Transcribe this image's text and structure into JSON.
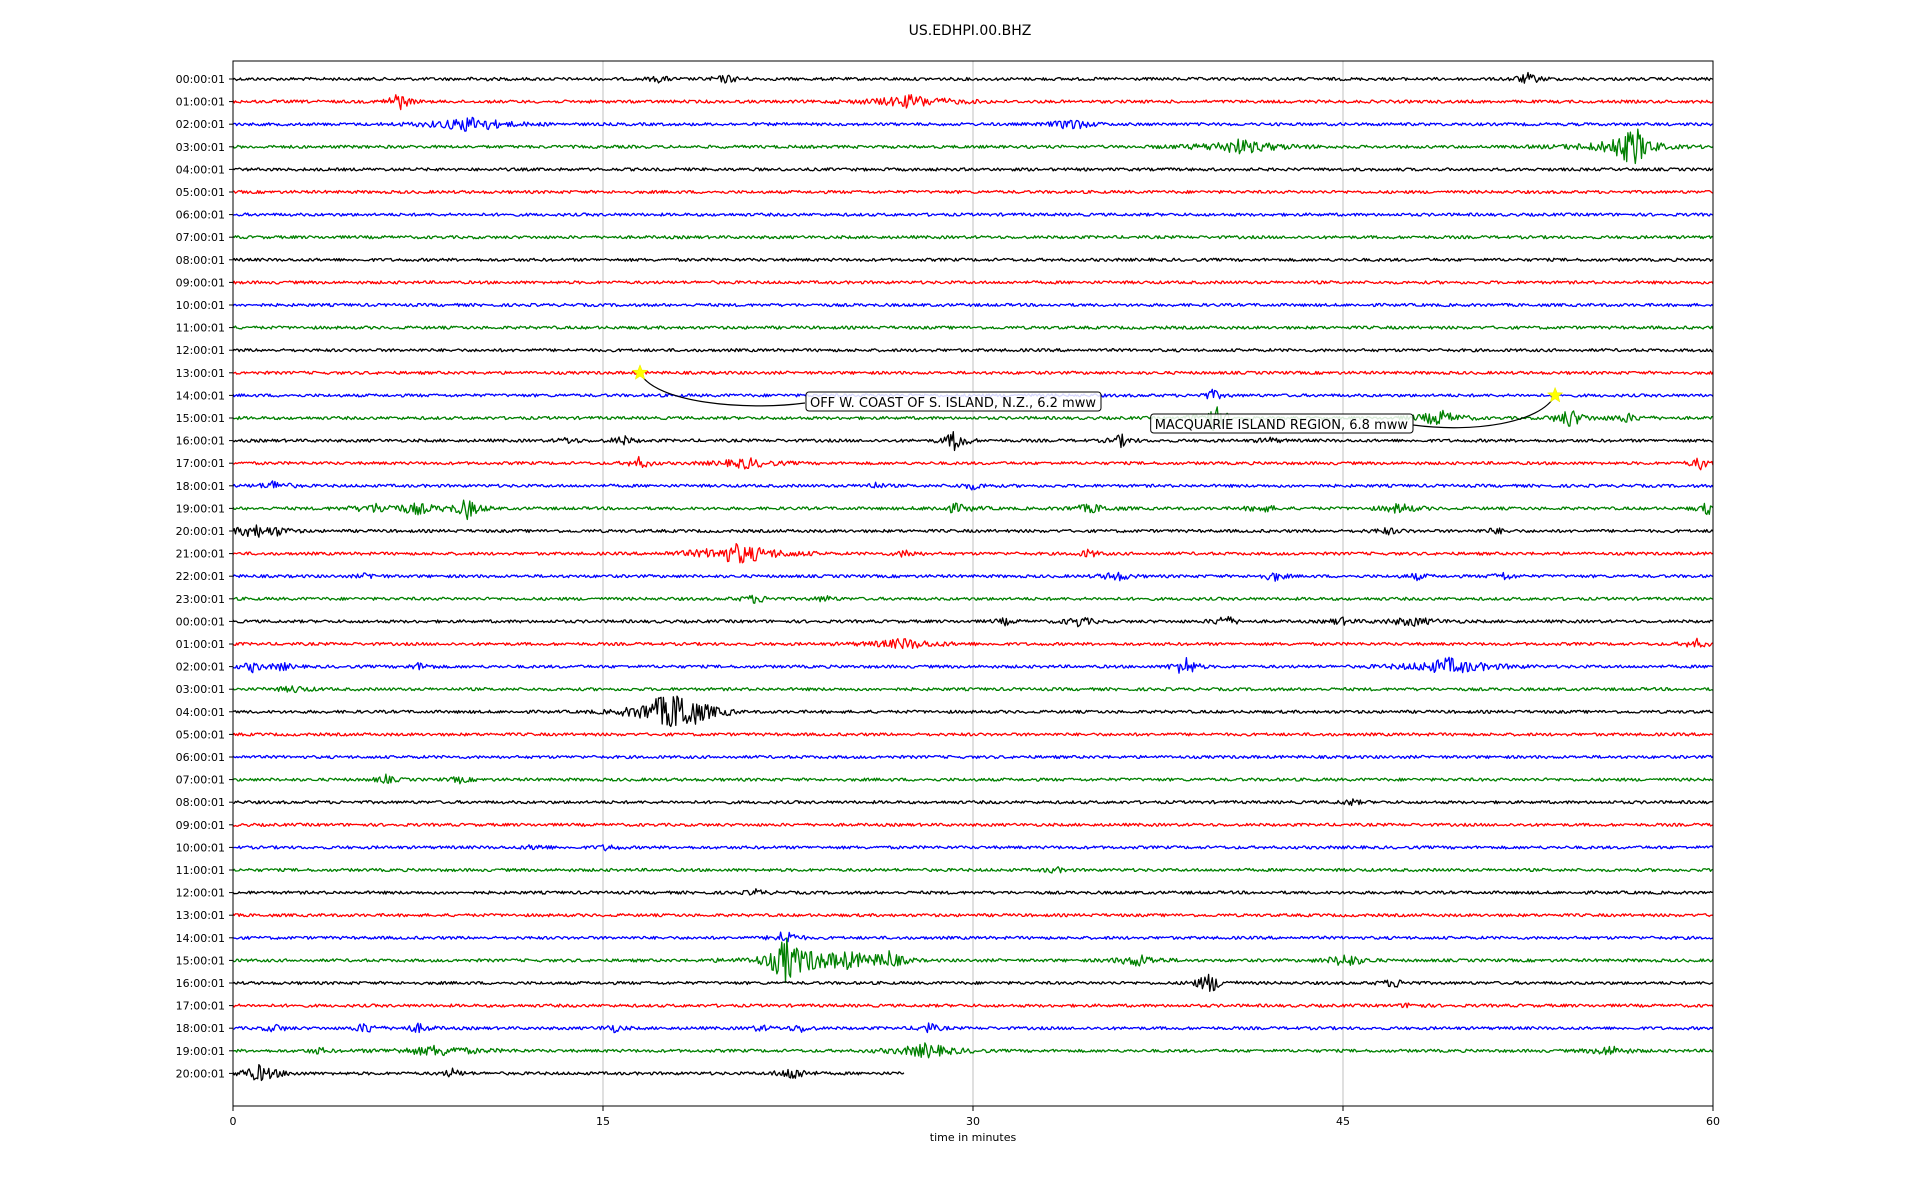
{
  "chart_data": {
    "type": "line",
    "title": "US.EDHPI.00.BHZ",
    "xlabel": "time in minutes",
    "ylabel": "",
    "xlim": [
      0,
      60
    ],
    "x_ticks": [
      0,
      15,
      30,
      45,
      60
    ],
    "grid": "vertical",
    "colors": [
      "#000000",
      "#ff0000",
      "#0000ff",
      "#008000"
    ],
    "rows": [
      {
        "label": "00:00:01",
        "end": 60,
        "bursts": [
          [
            17.3,
            3,
            0.3
          ],
          [
            20,
            3.5,
            0.4
          ],
          [
            52.5,
            5,
            0.4
          ],
          [
            10,
            2,
            0.2
          ]
        ]
      },
      {
        "label": "01:00:01",
        "end": 60,
        "bursts": [
          [
            6.7,
            10,
            0.3
          ],
          [
            27.5,
            6,
            1.2
          ]
        ]
      },
      {
        "label": "02:00:01",
        "end": 60,
        "bursts": [
          [
            9.5,
            6,
            1.2
          ],
          [
            34,
            6,
            0.5
          ],
          [
            10,
            3,
            0.4
          ]
        ]
      },
      {
        "label": "03:00:01",
        "end": 60,
        "bursts": [
          [
            40.8,
            7,
            1.2
          ],
          [
            56.8,
            20,
            0.4
          ],
          [
            56,
            6,
            1.2
          ]
        ]
      },
      {
        "label": "04:00:01",
        "end": 60,
        "bursts": []
      },
      {
        "label": "05:00:01",
        "end": 60,
        "bursts": []
      },
      {
        "label": "06:00:01",
        "end": 60,
        "bursts": []
      },
      {
        "label": "07:00:01",
        "end": 60,
        "bursts": []
      },
      {
        "label": "08:00:01",
        "end": 60,
        "bursts": []
      },
      {
        "label": "09:00:01",
        "end": 60,
        "bursts": []
      },
      {
        "label": "10:00:01",
        "end": 60,
        "bursts": []
      },
      {
        "label": "11:00:01",
        "end": 60,
        "bursts": []
      },
      {
        "label": "12:00:01",
        "end": 60,
        "bursts": []
      },
      {
        "label": "13:00:01",
        "end": 60,
        "bursts": []
      },
      {
        "label": "14:00:01",
        "end": 60,
        "bursts": [
          [
            39.7,
            5,
            0.3
          ]
        ]
      },
      {
        "label": "15:00:01",
        "end": 60,
        "bursts": [
          [
            39.7,
            16,
            0.4
          ],
          [
            48.9,
            8,
            0.6
          ],
          [
            54.2,
            10,
            0.4
          ],
          [
            56.5,
            4,
            0.5
          ]
        ]
      },
      {
        "label": "16:00:01",
        "end": 60,
        "bursts": [
          [
            15.8,
            5,
            0.3
          ],
          [
            29.3,
            12,
            0.3
          ],
          [
            36,
            6,
            0.3
          ],
          [
            13.6,
            3,
            0.3
          ],
          [
            42,
            3,
            0.3
          ]
        ]
      },
      {
        "label": "17:00:01",
        "end": 60,
        "bursts": [
          [
            16.5,
            6,
            0.3
          ],
          [
            20.8,
            5,
            0.8
          ],
          [
            59.5,
            6,
            0.3
          ]
        ]
      },
      {
        "label": "18:00:01",
        "end": 60,
        "bursts": [
          [
            1.7,
            5,
            0.4
          ],
          [
            26,
            3,
            0.3
          ],
          [
            30,
            3,
            0.4
          ]
        ]
      },
      {
        "label": "19:00:01",
        "end": 60,
        "bursts": [
          [
            9.5,
            10,
            0.4
          ],
          [
            5.8,
            4,
            0.8
          ],
          [
            7.5,
            5,
            0.6
          ],
          [
            29.3,
            4,
            0.6
          ],
          [
            34.8,
            4,
            0.6
          ],
          [
            41.7,
            4,
            0.4
          ],
          [
            47.3,
            5,
            0.5
          ],
          [
            59.8,
            6,
            0.3
          ]
        ]
      },
      {
        "label": "20:00:01",
        "end": 60,
        "bursts": [
          [
            0.8,
            7,
            0.5
          ],
          [
            1.8,
            3,
            0.5
          ],
          [
            46.8,
            3,
            0.4
          ],
          [
            51.2,
            3,
            0.3
          ]
        ]
      },
      {
        "label": "21:00:01",
        "end": 60,
        "bursts": [
          [
            20.5,
            10,
            1.2
          ],
          [
            27.3,
            4,
            0.3
          ],
          [
            34.7,
            4,
            0.3
          ]
        ]
      },
      {
        "label": "22:00:01",
        "end": 60,
        "bursts": [
          [
            35.8,
            5,
            0.4
          ],
          [
            42.2,
            5,
            0.3
          ],
          [
            48,
            3,
            0.3
          ],
          [
            51.5,
            4,
            0.3
          ],
          [
            5.5,
            3,
            0.3
          ]
        ]
      },
      {
        "label": "23:00:01",
        "end": 60,
        "bursts": [
          [
            21.2,
            4,
            0.4
          ],
          [
            24,
            3,
            0.3
          ]
        ]
      },
      {
        "label": "00:00:01",
        "end": 60,
        "bursts": [
          [
            34.3,
            5,
            0.4
          ],
          [
            40.2,
            7,
            0.3
          ],
          [
            44.9,
            4,
            0.3
          ],
          [
            47.8,
            4,
            0.8
          ],
          [
            31.3,
            3,
            0.3
          ]
        ]
      },
      {
        "label": "01:00:01",
        "end": 60,
        "bursts": [
          [
            27.2,
            5,
            1
          ],
          [
            59.3,
            5,
            0.3
          ]
        ]
      },
      {
        "label": "02:00:01",
        "end": 60,
        "bursts": [
          [
            38.6,
            12,
            0.3
          ],
          [
            49.3,
            8,
            1.2
          ],
          [
            0.8,
            5,
            0.3
          ],
          [
            2,
            4,
            0.3
          ],
          [
            7.6,
            4,
            0.3
          ]
        ]
      },
      {
        "label": "03:00:01",
        "end": 60,
        "bursts": [
          [
            2.5,
            3,
            0.5
          ]
        ]
      },
      {
        "label": "04:00:01",
        "end": 60,
        "bursts": [
          [
            18.2,
            18,
            0.8
          ],
          [
            17.3,
            8,
            1
          ]
        ]
      },
      {
        "label": "05:00:01",
        "end": 60,
        "bursts": []
      },
      {
        "label": "06:00:01",
        "end": 60,
        "bursts": []
      },
      {
        "label": "07:00:01",
        "end": 60,
        "bursts": [
          [
            6.2,
            4,
            0.3
          ],
          [
            9.2,
            3,
            0.3
          ]
        ]
      },
      {
        "label": "08:00:01",
        "end": 60,
        "bursts": [
          [
            45.3,
            3,
            0.3
          ]
        ]
      },
      {
        "label": "09:00:01",
        "end": 60,
        "bursts": []
      },
      {
        "label": "10:00:01",
        "end": 60,
        "bursts": [
          [
            12.3,
            3,
            0.3
          ],
          [
            15.2,
            3,
            0.3
          ]
        ]
      },
      {
        "label": "11:00:01",
        "end": 60,
        "bursts": [
          [
            33.3,
            3,
            0.3
          ]
        ]
      },
      {
        "label": "12:00:01",
        "end": 60,
        "bursts": [
          [
            21.2,
            3,
            0.3
          ]
        ]
      },
      {
        "label": "13:00:01",
        "end": 60,
        "bursts": []
      },
      {
        "label": "14:00:01",
        "end": 60,
        "bursts": [
          [
            22.4,
            9,
            0.3
          ]
        ]
      },
      {
        "label": "15:00:01",
        "end": 60,
        "bursts": [
          [
            22.4,
            22,
            0.4
          ],
          [
            23.5,
            8,
            1.5
          ],
          [
            25,
            6,
            0.6
          ],
          [
            26.6,
            8,
            0.4
          ],
          [
            36.7,
            6,
            0.6
          ],
          [
            45.1,
            7,
            0.5
          ]
        ]
      },
      {
        "label": "16:00:01",
        "end": 60,
        "bursts": [
          [
            39.6,
            10,
            0.4
          ],
          [
            47.1,
            4,
            0.4
          ]
        ]
      },
      {
        "label": "17:00:01",
        "end": 60,
        "bursts": [
          [
            47.8,
            3,
            0.3
          ]
        ]
      },
      {
        "label": "18:00:01",
        "end": 60,
        "bursts": [
          [
            1.7,
            4,
            0.3
          ],
          [
            5.4,
            6,
            0.3
          ],
          [
            7.5,
            4,
            0.4
          ],
          [
            15.4,
            4,
            0.3
          ],
          [
            21.4,
            3,
            0.3
          ],
          [
            23,
            4,
            0.3
          ],
          [
            28.2,
            5,
            0.3
          ]
        ]
      },
      {
        "label": "19:00:01",
        "end": 60,
        "bursts": [
          [
            8.3,
            5,
            1.2
          ],
          [
            28.1,
            7,
            0.9
          ],
          [
            55.8,
            5,
            0.5
          ],
          [
            3.5,
            3,
            0.3
          ]
        ]
      },
      {
        "label": "20:00:01",
        "end": 27.2,
        "bursts": [
          [
            1.1,
            8,
            0.6
          ],
          [
            8.9,
            4,
            0.3
          ],
          [
            22.7,
            7,
            0.4
          ]
        ]
      }
    ],
    "events": [
      {
        "label": "OFF W. COAST OF S. ISLAND, N.Z., 6.2 mww",
        "row": 13,
        "minute": 16.5
      },
      {
        "label": "MACQUARIE ISLAND REGION, 6.8 mww",
        "row": 14,
        "minute": 53.6
      }
    ]
  }
}
